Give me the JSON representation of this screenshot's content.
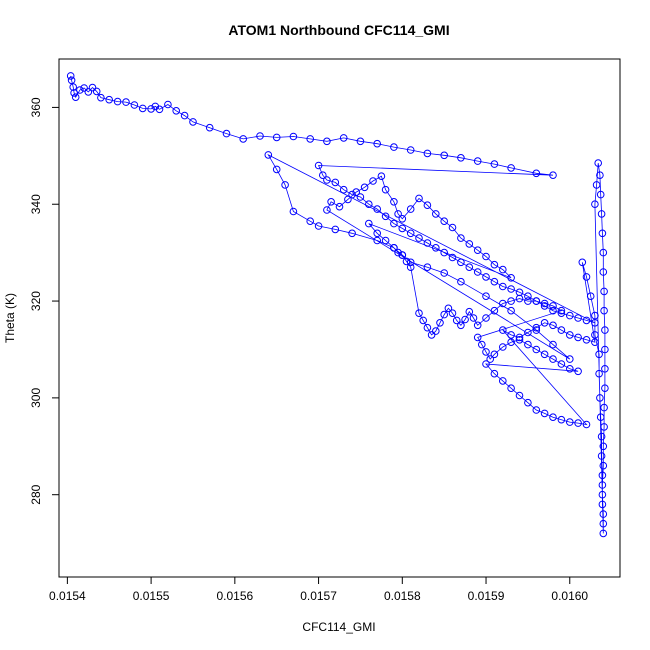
{
  "chart_data": {
    "type": "scatter",
    "title": "ATOM1 Northbound CFC114_GMI",
    "xlabel": "CFC114_GMI",
    "ylabel": "Theta (K)",
    "xlim": [
      0.01539,
      0.01606
    ],
    "ylim": [
      263,
      370
    ],
    "x_ticks": [
      {
        "value": 0.0154,
        "label": "0.0154"
      },
      {
        "value": 0.0155,
        "label": "0.0155"
      },
      {
        "value": 0.0156,
        "label": "0.0156"
      },
      {
        "value": 0.0157,
        "label": "0.0157"
      },
      {
        "value": 0.0158,
        "label": "0.0158"
      },
      {
        "value": 0.0159,
        "label": "0.0159"
      },
      {
        "value": 0.016,
        "label": "0.0160"
      }
    ],
    "y_ticks": [
      {
        "value": 280,
        "label": "280"
      },
      {
        "value": 300,
        "label": "300"
      },
      {
        "value": 320,
        "label": "320"
      },
      {
        "value": 340,
        "label": "340"
      },
      {
        "value": 360,
        "label": "360"
      }
    ],
    "grid": false,
    "legend": "none",
    "series_color": "#0000ff",
    "series": [
      {
        "marker": "open-circle",
        "connected": true,
        "points": [
          [
            0.015404,
            366.5
          ],
          [
            0.015405,
            365.6
          ],
          [
            0.015407,
            364.2
          ],
          [
            0.015408,
            363.0
          ],
          [
            0.01541,
            362.1
          ],
          [
            0.015415,
            363.6
          ],
          [
            0.01542,
            364.0
          ],
          [
            0.015425,
            363.2
          ],
          [
            0.01543,
            364.1
          ],
          [
            0.015435,
            363.3
          ],
          [
            0.01544,
            362.0
          ],
          [
            0.01545,
            361.6
          ],
          [
            0.01546,
            361.2
          ],
          [
            0.01547,
            361.1
          ],
          [
            0.01548,
            360.5
          ],
          [
            0.01549,
            359.8
          ],
          [
            0.0155,
            359.7
          ],
          [
            0.015505,
            360.2
          ],
          [
            0.01551,
            359.6
          ],
          [
            0.01552,
            360.6
          ],
          [
            0.01553,
            359.3
          ],
          [
            0.01554,
            358.3
          ],
          [
            0.01555,
            357.0
          ],
          [
            0.01557,
            355.8
          ],
          [
            0.01559,
            354.6
          ],
          [
            0.01561,
            353.5
          ],
          [
            0.01563,
            354.1
          ],
          [
            0.01565,
            353.8
          ],
          [
            0.01567,
            354.0
          ],
          [
            0.01569,
            353.5
          ],
          [
            0.01571,
            353.0
          ],
          [
            0.01573,
            353.7
          ],
          [
            0.01575,
            353.0
          ],
          [
            0.01577,
            352.5
          ],
          [
            0.01579,
            351.8
          ],
          [
            0.01581,
            351.2
          ],
          [
            0.01583,
            350.5
          ],
          [
            0.01585,
            350.1
          ],
          [
            0.01587,
            349.6
          ],
          [
            0.01589,
            348.9
          ],
          [
            0.01591,
            348.3
          ],
          [
            0.01593,
            347.5
          ],
          [
            0.01596,
            346.4
          ],
          [
            0.01598,
            346.0
          ],
          [
            0.0157,
            348.0
          ],
          [
            0.015705,
            346.0
          ],
          [
            0.01571,
            345.0
          ],
          [
            0.01572,
            344.5
          ],
          [
            0.01573,
            343.0
          ],
          [
            0.01574,
            342.0
          ],
          [
            0.01575,
            341.5
          ],
          [
            0.01576,
            340.0
          ],
          [
            0.01577,
            339.0
          ],
          [
            0.01578,
            337.5
          ],
          [
            0.01579,
            336.0
          ],
          [
            0.0158,
            335.0
          ],
          [
            0.01581,
            334.0
          ],
          [
            0.01582,
            333.0
          ],
          [
            0.01583,
            332.0
          ],
          [
            0.01584,
            331.0
          ],
          [
            0.01585,
            330.0
          ],
          [
            0.01586,
            329.0
          ],
          [
            0.01587,
            328.0
          ],
          [
            0.01588,
            327.0
          ],
          [
            0.01589,
            326.0
          ],
          [
            0.0159,
            325.0
          ],
          [
            0.01591,
            324.0
          ],
          [
            0.01592,
            323.0
          ],
          [
            0.01593,
            322.5
          ],
          [
            0.01594,
            321.8
          ],
          [
            0.01595,
            321.0
          ],
          [
            0.01596,
            320.0
          ],
          [
            0.01597,
            319.0
          ],
          [
            0.01598,
            318.0
          ],
          [
            0.01599,
            317.5
          ],
          [
            0.016,
            317.0
          ],
          [
            0.01601,
            316.5
          ],
          [
            0.01602,
            316.0
          ],
          [
            0.01603,
            315.5
          ],
          [
            0.01564,
            350.2
          ],
          [
            0.01565,
            347.2
          ],
          [
            0.01566,
            344.0
          ],
          [
            0.01567,
            338.5
          ],
          [
            0.01569,
            336.5
          ],
          [
            0.0157,
            335.5
          ],
          [
            0.01572,
            334.8
          ],
          [
            0.01574,
            334.0
          ],
          [
            0.01577,
            332.5
          ],
          [
            0.01579,
            331.0
          ],
          [
            0.0158,
            329.5
          ],
          [
            0.01581,
            328.0
          ],
          [
            0.01583,
            327.0
          ],
          [
            0.01585,
            325.8
          ],
          [
            0.01587,
            324.0
          ],
          [
            0.0159,
            321.0
          ],
          [
            0.01593,
            318.0
          ],
          [
            0.01596,
            314.0
          ],
          [
            0.01598,
            311.0
          ],
          [
            0.016,
            308.0
          ],
          [
            0.01571,
            338.8
          ],
          [
            0.015715,
            340.5
          ],
          [
            0.015725,
            339.5
          ],
          [
            0.015735,
            341.0
          ],
          [
            0.015745,
            342.5
          ],
          [
            0.015755,
            343.5
          ],
          [
            0.015765,
            344.8
          ],
          [
            0.015775,
            345.8
          ],
          [
            0.01578,
            343.0
          ],
          [
            0.01579,
            340.5
          ],
          [
            0.015795,
            338.0
          ],
          [
            0.0158,
            337.0
          ],
          [
            0.01581,
            339.0
          ],
          [
            0.01582,
            341.2
          ],
          [
            0.01583,
            339.8
          ],
          [
            0.01584,
            338.0
          ],
          [
            0.01585,
            336.5
          ],
          [
            0.01586,
            335.2
          ],
          [
            0.01587,
            333.0
          ],
          [
            0.01588,
            331.8
          ],
          [
            0.01589,
            330.5
          ],
          [
            0.0159,
            329.2
          ],
          [
            0.01591,
            327.5
          ],
          [
            0.01592,
            326.5
          ],
          [
            0.01593,
            324.8
          ],
          [
            0.01576,
            336.0
          ],
          [
            0.01577,
            334.0
          ],
          [
            0.01578,
            332.5
          ],
          [
            0.01579,
            331.0
          ],
          [
            0.015795,
            330.0
          ],
          [
            0.0158,
            329.5
          ],
          [
            0.015805,
            328.2
          ],
          [
            0.01581,
            327.0
          ],
          [
            0.01582,
            317.5
          ],
          [
            0.015825,
            316.0
          ],
          [
            0.01583,
            314.5
          ],
          [
            0.015835,
            313.0
          ],
          [
            0.01584,
            313.8
          ],
          [
            0.015845,
            315.5
          ],
          [
            0.01585,
            317.2
          ],
          [
            0.015855,
            318.5
          ],
          [
            0.01586,
            317.5
          ],
          [
            0.015865,
            316.0
          ],
          [
            0.01587,
            315.0
          ],
          [
            0.015875,
            316.2
          ],
          [
            0.01588,
            317.8
          ],
          [
            0.015885,
            316.5
          ],
          [
            0.01589,
            315.0
          ],
          [
            0.0159,
            316.5
          ],
          [
            0.01591,
            318.0
          ],
          [
            0.01592,
            319.5
          ],
          [
            0.01593,
            320.0
          ],
          [
            0.01594,
            320.5
          ],
          [
            0.01595,
            320.0
          ],
          [
            0.01596,
            320.0
          ],
          [
            0.01597,
            319.5
          ],
          [
            0.01598,
            319.0
          ],
          [
            0.01599,
            318.0
          ],
          [
            0.01589,
            312.5
          ],
          [
            0.015895,
            311.0
          ],
          [
            0.0159,
            309.5
          ],
          [
            0.015905,
            308.0
          ],
          [
            0.01591,
            309.0
          ],
          [
            0.01592,
            310.5
          ],
          [
            0.01593,
            311.5
          ],
          [
            0.01594,
            312.0
          ],
          [
            0.01595,
            311.0
          ],
          [
            0.01596,
            310.0
          ],
          [
            0.01597,
            309.0
          ],
          [
            0.01598,
            308.0
          ],
          [
            0.01599,
            307.0
          ],
          [
            0.016,
            306.0
          ],
          [
            0.01601,
            305.5
          ],
          [
            0.0159,
            307.0
          ],
          [
            0.01591,
            305.0
          ],
          [
            0.01592,
            303.5
          ],
          [
            0.01593,
            302.0
          ],
          [
            0.01594,
            300.5
          ],
          [
            0.01595,
            299.0
          ],
          [
            0.01596,
            297.5
          ],
          [
            0.01597,
            296.8
          ],
          [
            0.01598,
            296.0
          ],
          [
            0.01599,
            295.5
          ],
          [
            0.016,
            295.0
          ],
          [
            0.01601,
            294.8
          ],
          [
            0.01602,
            294.5
          ],
          [
            0.01592,
            314.0
          ],
          [
            0.01593,
            313.0
          ],
          [
            0.01594,
            312.5
          ],
          [
            0.01595,
            313.5
          ],
          [
            0.01596,
            314.5
          ],
          [
            0.01597,
            315.5
          ],
          [
            0.01598,
            315.0
          ],
          [
            0.01599,
            314.0
          ],
          [
            0.016,
            313.0
          ],
          [
            0.01601,
            312.5
          ],
          [
            0.01602,
            312.0
          ],
          [
            0.01603,
            311.5
          ],
          [
            0.016015,
            328.0
          ],
          [
            0.01602,
            325.0
          ],
          [
            0.016025,
            321.0
          ],
          [
            0.01603,
            317.0
          ],
          [
            0.01603,
            313.0
          ],
          [
            0.016035,
            309.0
          ],
          [
            0.016035,
            305.0
          ],
          [
            0.016036,
            300.0
          ],
          [
            0.016037,
            296.0
          ],
          [
            0.016038,
            292.0
          ],
          [
            0.016038,
            288.0
          ],
          [
            0.016039,
            284.0
          ],
          [
            0.016039,
            280.0
          ],
          [
            0.01604,
            276.0
          ],
          [
            0.01604,
            272.0
          ],
          [
            0.01603,
            340.0
          ],
          [
            0.016032,
            344.0
          ],
          [
            0.016034,
            348.5
          ],
          [
            0.016036,
            346.0
          ],
          [
            0.016037,
            342.0
          ],
          [
            0.016038,
            338.0
          ],
          [
            0.016039,
            334.0
          ],
          [
            0.01604,
            330.0
          ],
          [
            0.01604,
            326.0
          ],
          [
            0.016041,
            322.0
          ],
          [
            0.016041,
            318.0
          ],
          [
            0.016042,
            314.0
          ],
          [
            0.016042,
            310.0
          ],
          [
            0.016042,
            306.0
          ],
          [
            0.016042,
            302.0
          ],
          [
            0.016041,
            298.0
          ],
          [
            0.016041,
            294.0
          ],
          [
            0.01604,
            290.0
          ],
          [
            0.01604,
            286.0
          ],
          [
            0.016039,
            282.0
          ],
          [
            0.016039,
            278.0
          ],
          [
            0.01604,
            274.0
          ]
        ]
      }
    ]
  }
}
